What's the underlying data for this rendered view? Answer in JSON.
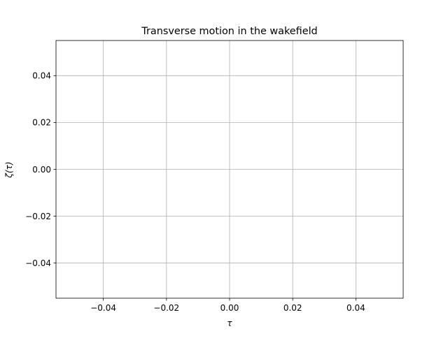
{
  "chart_data": {
    "type": "line",
    "title": "Transverse motion in the wakefield",
    "xlabel": "τ",
    "ylabel": "ζ(τ)",
    "xlim": [
      -0.055,
      0.055
    ],
    "ylim": [
      -0.055,
      0.055
    ],
    "x_ticks": [
      -0.04,
      -0.02,
      0.0,
      0.02,
      0.04
    ],
    "y_ticks": [
      -0.04,
      -0.02,
      0.0,
      0.02,
      0.04
    ],
    "x_tick_labels": [
      "−0.04",
      "−0.02",
      "0.00",
      "0.02",
      "0.04"
    ],
    "y_tick_labels": [
      "−0.04",
      "−0.02",
      "0.00",
      "0.02",
      "0.04"
    ],
    "grid": true,
    "series": []
  }
}
